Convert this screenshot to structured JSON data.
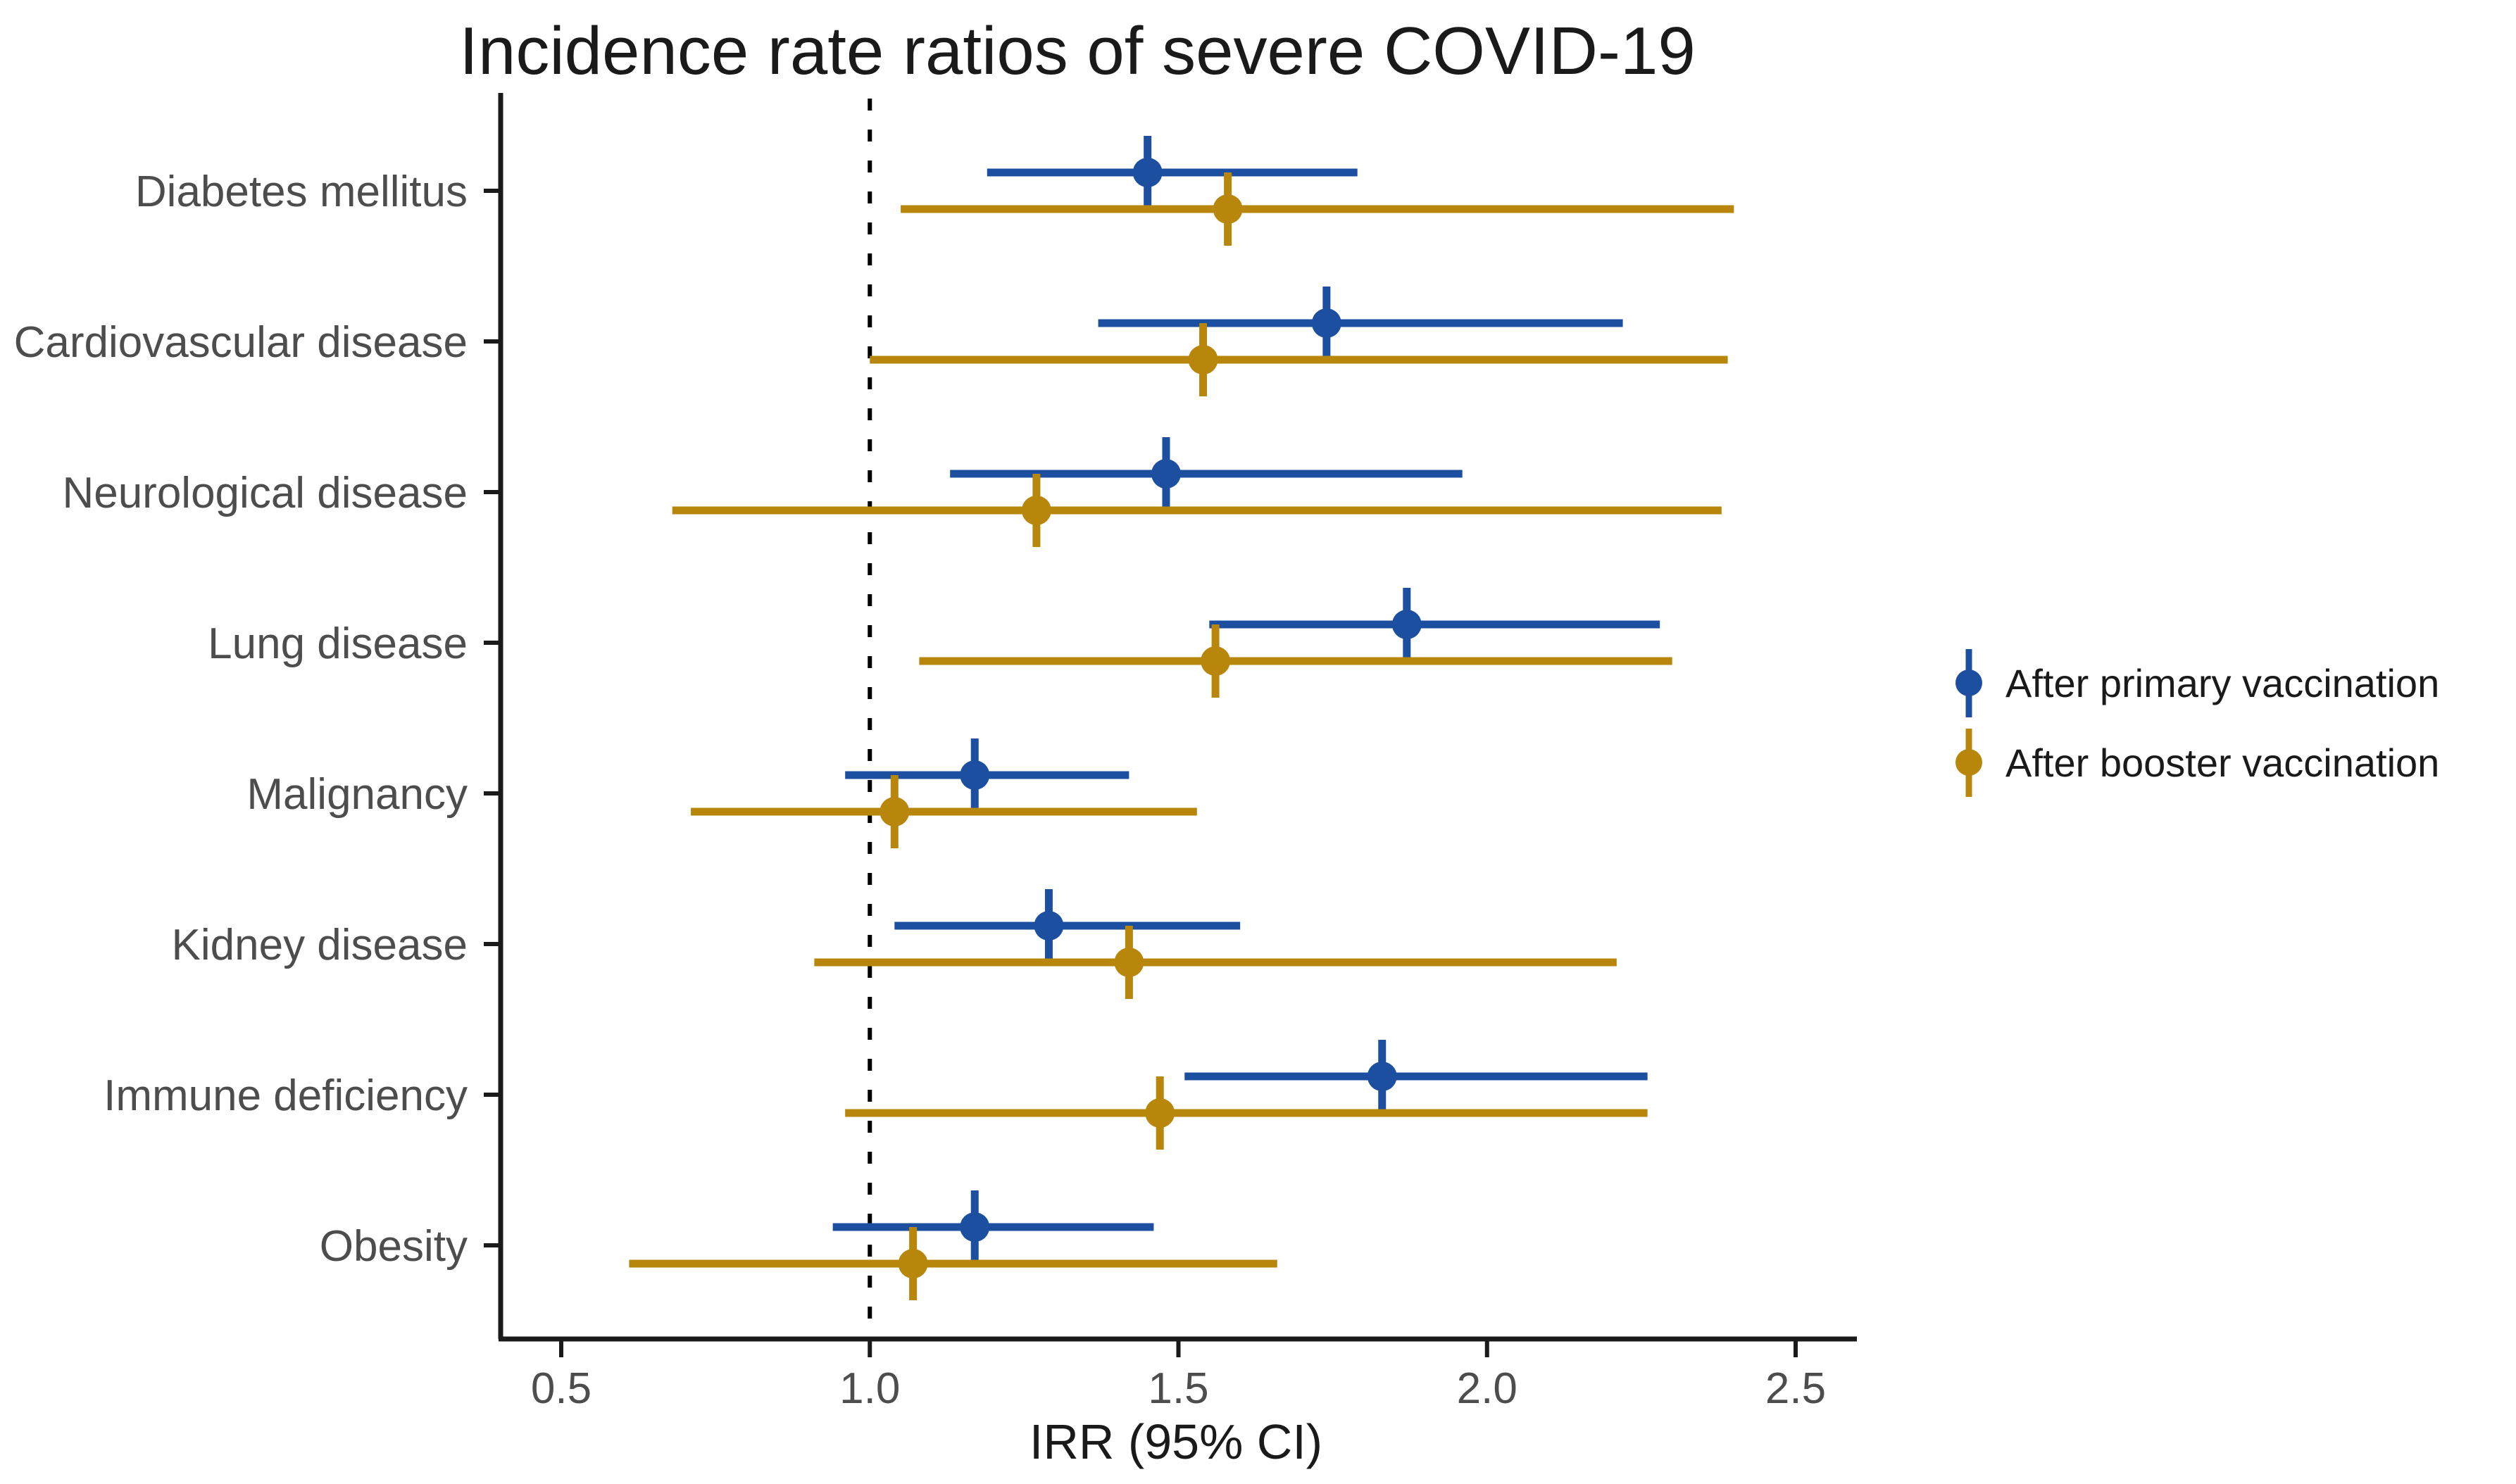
{
  "title": "Incidence rate ratios of severe COVID-19",
  "chart_data": {
    "type": "scatter",
    "subtype": "forest-plot-pointrange",
    "title": "Incidence rate ratios of severe COVID-19",
    "xlabel": "IRR (95% CI)",
    "ylabel": "",
    "xlim": [
      0.4,
      2.62
    ],
    "x_ticks": [
      0.5,
      1.0,
      1.5,
      2.0,
      2.5
    ],
    "x_tick_labels": [
      "0.5",
      "1.0",
      "1.5",
      "2.0",
      "2.5"
    ],
    "reference_line_x": 1.0,
    "reference_line_style": "dashed",
    "grid": false,
    "legend_position": "right",
    "categories": [
      "Diabetes mellitus",
      "Cardiovascular disease",
      "Neurological disease",
      "Lung disease",
      "Malignancy",
      "Kidney disease",
      "Immune deficiency",
      "Obesity"
    ],
    "series": [
      {
        "name": "After primary vaccination",
        "color": "#1D4FA1",
        "irr": [
          1.45,
          1.74,
          1.48,
          1.87,
          1.17,
          1.29,
          1.83,
          1.17
        ],
        "ci_lower": [
          1.19,
          1.37,
          1.13,
          1.55,
          0.96,
          1.04,
          1.51,
          0.94
        ],
        "ci_upper": [
          1.79,
          2.22,
          1.96,
          2.28,
          1.42,
          1.6,
          2.26,
          1.46
        ]
      },
      {
        "name": "After booster vaccination",
        "color": "#B8860B",
        "irr": [
          1.58,
          1.54,
          1.27,
          1.56,
          1.04,
          1.42,
          1.47,
          1.07
        ],
        "ci_lower": [
          1.05,
          1.0,
          0.68,
          1.08,
          0.71,
          0.91,
          0.96,
          0.61
        ],
        "ci_upper": [
          2.4,
          2.39,
          2.38,
          2.3,
          1.53,
          2.21,
          2.26,
          1.66
        ]
      }
    ]
  },
  "legend": {
    "items": [
      {
        "label": "After primary vaccination",
        "color": "#1D4FA1"
      },
      {
        "label": "After booster vaccination",
        "color": "#B8860B"
      }
    ]
  },
  "colors": {
    "axis": "#1a1a1a",
    "tick_label": "#4d4d4d",
    "reference_line": "#000000",
    "background": "#ffffff"
  }
}
